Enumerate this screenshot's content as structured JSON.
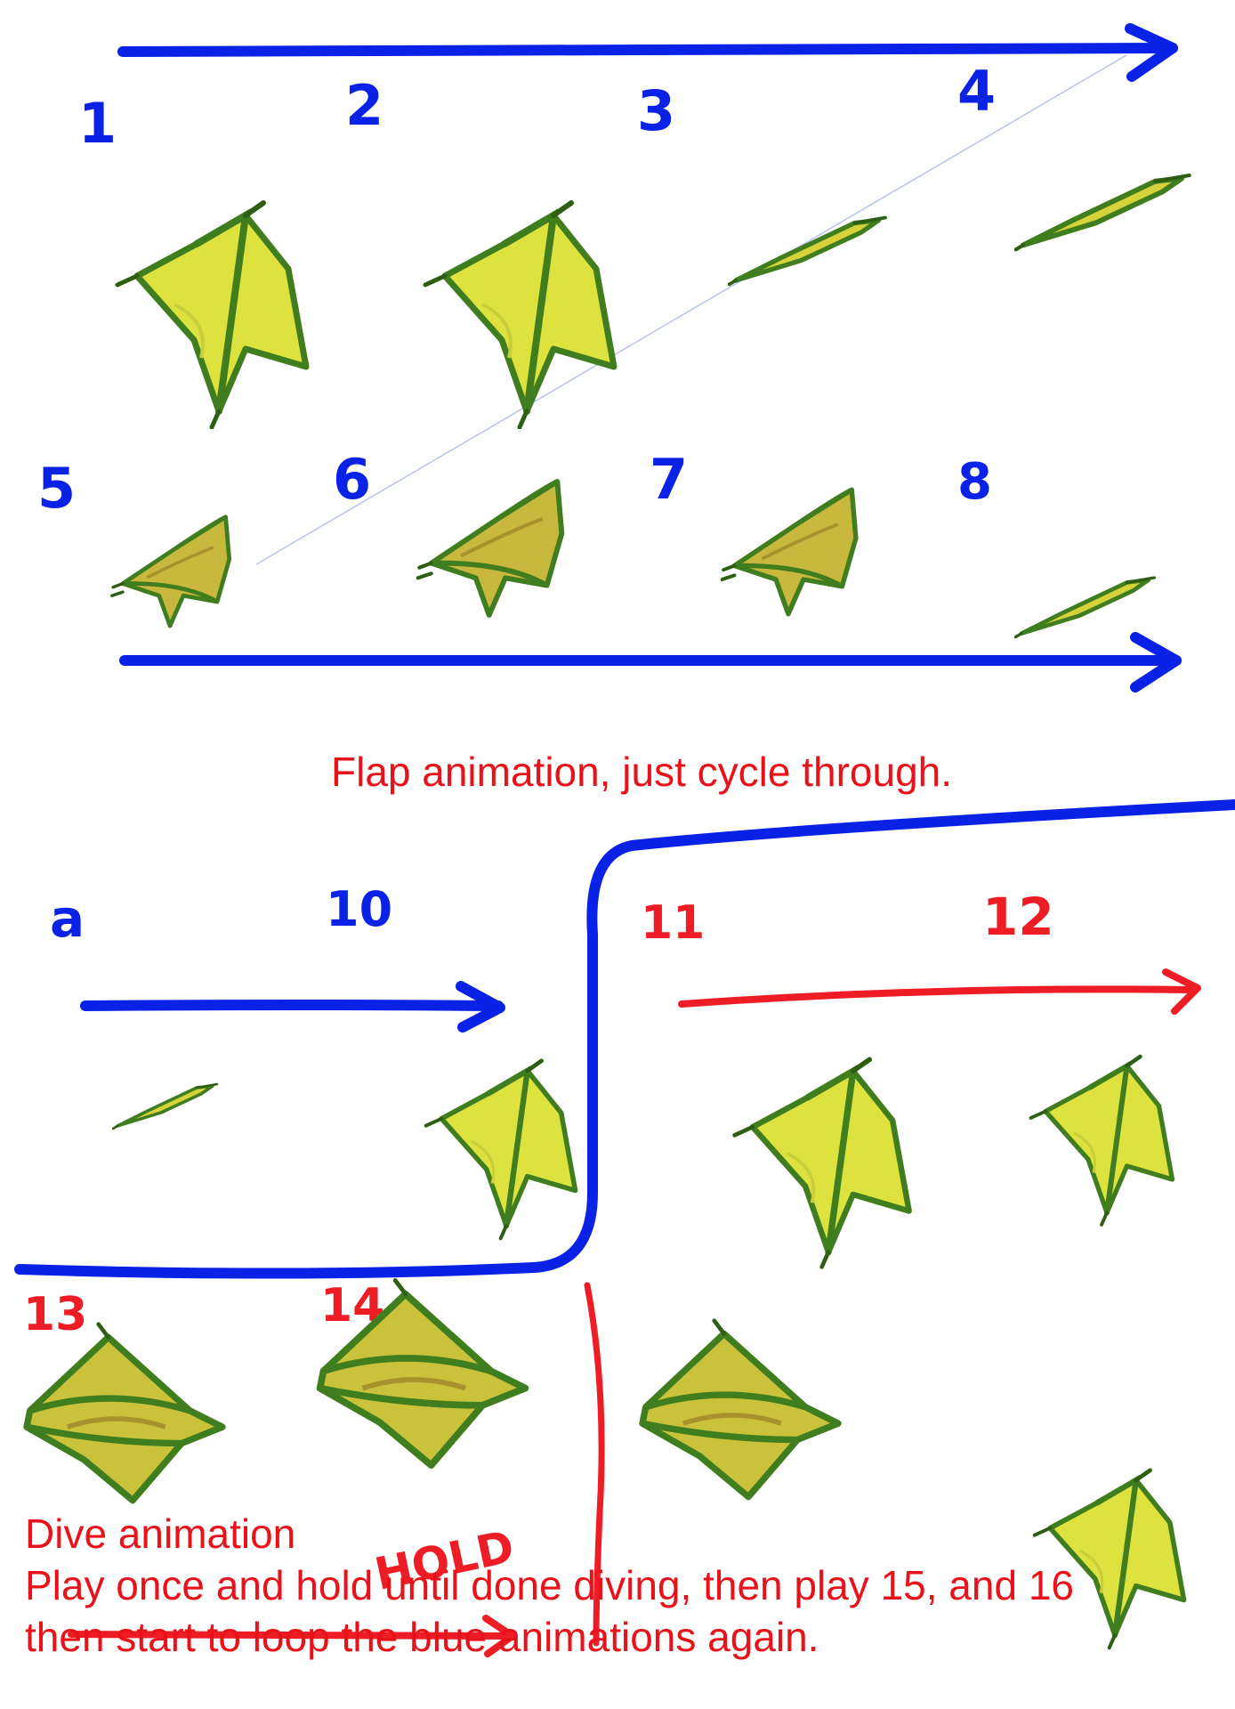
{
  "colors": {
    "blue": "#0a22e6",
    "red": "#ee1c24",
    "wing_fill": "#d6e03a",
    "wing_edge": "#3c7a1c",
    "wing_shadow": "#a8922e"
  },
  "frames": {
    "f1": "1",
    "f2": "2",
    "f3": "3",
    "f4": "4",
    "f5": "5",
    "f6": "6",
    "f7": "7",
    "f8": "8",
    "f9": "a",
    "f10": "10",
    "f11": "11",
    "f12": "12",
    "f13": "13",
    "f14": "14"
  },
  "hold_label": "HOLD",
  "captions": {
    "flap": "Flap animation, just cycle through.",
    "dive_title": "Dive animation",
    "dive_line1": "Play once and hold until done diving, then play 15, and 16",
    "dive_line2": "then start to loop the blue animations again."
  },
  "icons": [
    "wing-icon",
    "arrow-icon"
  ]
}
